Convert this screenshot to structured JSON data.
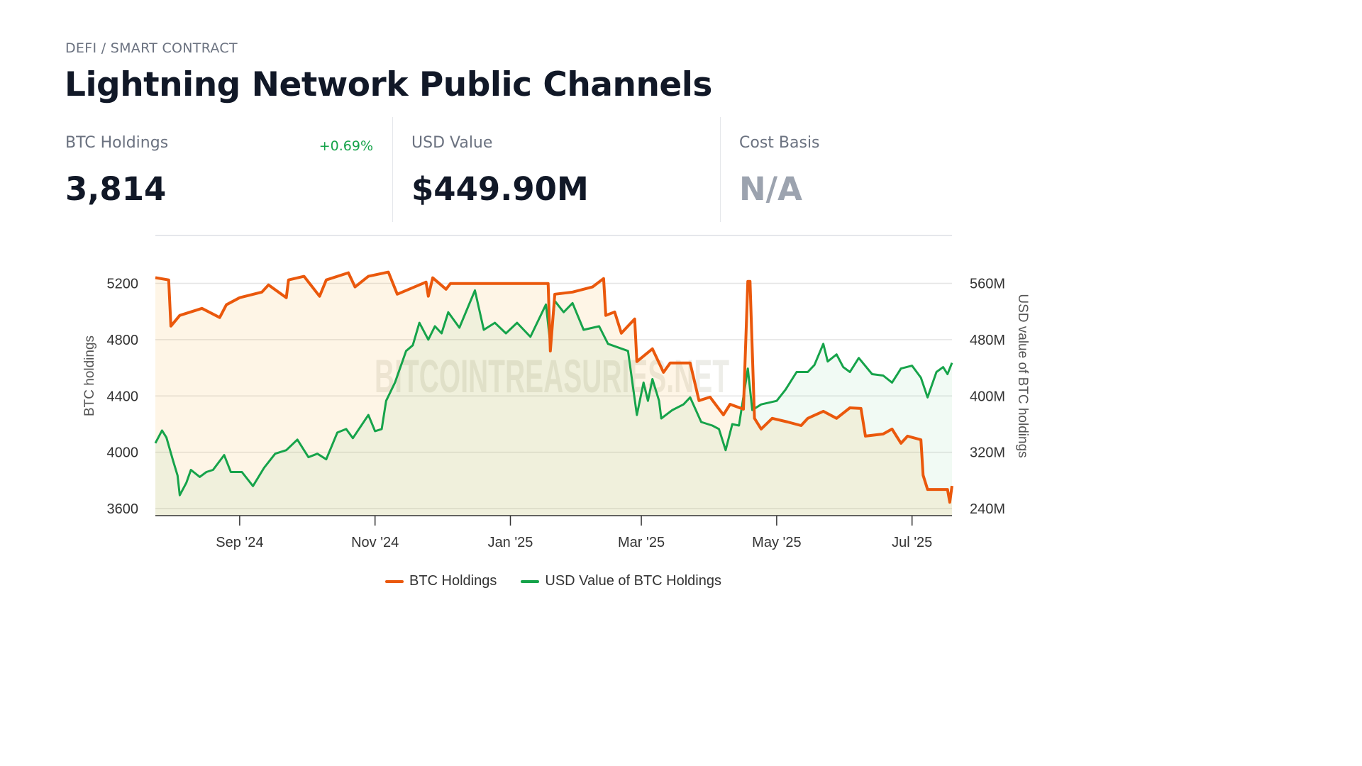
{
  "header": {
    "breadcrumb": "DEFI / SMART CONTRACT",
    "title": "Lightning Network Public Channels"
  },
  "stats": [
    {
      "label": "BTC Holdings",
      "value": "3,814",
      "change": "+0.69%"
    },
    {
      "label": "USD Value",
      "value": "$449.90M"
    },
    {
      "label": "Cost Basis",
      "value": "N/A"
    }
  ],
  "colors": {
    "btc": "#ea580c",
    "usd": "#16a34a",
    "change_positive": "#16a34a",
    "na_text": "#9ca3af"
  },
  "chart_data": {
    "type": "line",
    "watermark": "BITCOINTREASURIES.NET",
    "xlim": [
      "2024-07-25",
      "2025-07-19"
    ],
    "x_ticks": [
      {
        "date": "2024-09-01",
        "label": "Sep '24"
      },
      {
        "date": "2024-11-01",
        "label": "Nov '24"
      },
      {
        "date": "2025-01-01",
        "label": "Jan '25"
      },
      {
        "date": "2025-03-01",
        "label": "Mar '25"
      },
      {
        "date": "2025-05-01",
        "label": "May '25"
      },
      {
        "date": "2025-07-01",
        "label": "Jul '25"
      }
    ],
    "y_left": {
      "label": "BTC holdings",
      "lim": [
        3550,
        5540
      ],
      "ticks": [
        3600,
        4000,
        4400,
        4800,
        5200
      ],
      "tick_labels": [
        "3600",
        "4000",
        "4400",
        "4800",
        "5200"
      ]
    },
    "y_right": {
      "label": "USD value of BTC holdings",
      "lim": [
        230,
        628
      ],
      "ticks": [
        240,
        320,
        400,
        480,
        560
      ],
      "tick_labels": [
        "240M",
        "320M",
        "400M",
        "480M",
        "560M"
      ]
    },
    "grid": true,
    "legend_position": "bottom",
    "series": [
      {
        "name": "BTC Holdings",
        "axis": "left",
        "color": "#ea580c",
        "points": [
          [
            "2024-07-25",
            5240
          ],
          [
            "2024-07-31",
            5224
          ],
          [
            "2024-08-01",
            4896
          ],
          [
            "2024-08-05",
            4972
          ],
          [
            "2024-08-15",
            5022
          ],
          [
            "2024-08-23",
            4957
          ],
          [
            "2024-08-26",
            5048
          ],
          [
            "2024-09-01",
            5098
          ],
          [
            "2024-09-11",
            5138
          ],
          [
            "2024-09-14",
            5189
          ],
          [
            "2024-09-22",
            5098
          ],
          [
            "2024-09-23",
            5224
          ],
          [
            "2024-09-30",
            5250
          ],
          [
            "2024-10-07",
            5108
          ],
          [
            "2024-10-10",
            5224
          ],
          [
            "2024-10-20",
            5275
          ],
          [
            "2024-10-23",
            5174
          ],
          [
            "2024-10-29",
            5250
          ],
          [
            "2024-11-07",
            5280
          ],
          [
            "2024-11-11",
            5123
          ],
          [
            "2024-11-24",
            5209
          ],
          [
            "2024-11-25",
            5108
          ],
          [
            "2024-11-27",
            5239
          ],
          [
            "2024-12-03",
            5158
          ],
          [
            "2024-12-05",
            5199
          ],
          [
            "2025-01-18",
            5199
          ],
          [
            "2025-01-19",
            4720
          ],
          [
            "2025-01-21",
            5123
          ],
          [
            "2025-01-29",
            5138
          ],
          [
            "2025-02-07",
            5174
          ],
          [
            "2025-02-12",
            5234
          ],
          [
            "2025-02-13",
            4972
          ],
          [
            "2025-02-17",
            4997
          ],
          [
            "2025-02-20",
            4846
          ],
          [
            "2025-02-26",
            4947
          ],
          [
            "2025-02-27",
            4644
          ],
          [
            "2025-03-06",
            4735
          ],
          [
            "2025-03-11",
            4568
          ],
          [
            "2025-03-14",
            4634
          ],
          [
            "2025-03-23",
            4634
          ],
          [
            "2025-03-27",
            4367
          ],
          [
            "2025-04-01",
            4392
          ],
          [
            "2025-04-07",
            4266
          ],
          [
            "2025-04-10",
            4341
          ],
          [
            "2025-04-16",
            4306
          ],
          [
            "2025-04-18",
            5214
          ],
          [
            "2025-04-19",
            5214
          ],
          [
            "2025-04-21",
            4241
          ],
          [
            "2025-04-24",
            4165
          ],
          [
            "2025-04-29",
            4241
          ],
          [
            "2025-05-06",
            4215
          ],
          [
            "2025-05-12",
            4190
          ],
          [
            "2025-05-15",
            4241
          ],
          [
            "2025-05-22",
            4291
          ],
          [
            "2025-05-28",
            4241
          ],
          [
            "2025-06-03",
            4316
          ],
          [
            "2025-06-08",
            4311
          ],
          [
            "2025-06-10",
            4115
          ],
          [
            "2025-06-18",
            4130
          ],
          [
            "2025-06-22",
            4165
          ],
          [
            "2025-06-26",
            4064
          ],
          [
            "2025-06-29",
            4115
          ],
          [
            "2025-07-05",
            4089
          ],
          [
            "2025-07-06",
            3837
          ],
          [
            "2025-07-08",
            3736
          ],
          [
            "2025-07-17",
            3736
          ],
          [
            "2025-07-18",
            3645
          ],
          [
            "2025-07-19",
            3761
          ]
        ]
      },
      {
        "name": "USD Value of BTC Holdings",
        "axis": "right",
        "color": "#16a34a",
        "points": [
          [
            "2024-07-25",
            333
          ],
          [
            "2024-07-28",
            351
          ],
          [
            "2024-07-30",
            341
          ],
          [
            "2024-08-02",
            308
          ],
          [
            "2024-08-04",
            287
          ],
          [
            "2024-08-05",
            259
          ],
          [
            "2024-08-08",
            277
          ],
          [
            "2024-08-10",
            295
          ],
          [
            "2024-08-14",
            285
          ],
          [
            "2024-08-17",
            292
          ],
          [
            "2024-08-20",
            295
          ],
          [
            "2024-08-25",
            316
          ],
          [
            "2024-08-28",
            292
          ],
          [
            "2024-09-02",
            292
          ],
          [
            "2024-09-07",
            272
          ],
          [
            "2024-09-12",
            298
          ],
          [
            "2024-09-17",
            318
          ],
          [
            "2024-09-22",
            323
          ],
          [
            "2024-09-27",
            338
          ],
          [
            "2024-10-02",
            313
          ],
          [
            "2024-10-06",
            318
          ],
          [
            "2024-10-10",
            310
          ],
          [
            "2024-10-15",
            348
          ],
          [
            "2024-10-19",
            353
          ],
          [
            "2024-10-22",
            340
          ],
          [
            "2024-10-29",
            373
          ],
          [
            "2024-11-01",
            350
          ],
          [
            "2024-11-04",
            353
          ],
          [
            "2024-11-06",
            393
          ],
          [
            "2024-11-10",
            419
          ],
          [
            "2024-11-15",
            464
          ],
          [
            "2024-11-18",
            472
          ],
          [
            "2024-11-21",
            504
          ],
          [
            "2024-11-25",
            480
          ],
          [
            "2024-11-28",
            499
          ],
          [
            "2024-12-01",
            489
          ],
          [
            "2024-12-04",
            519
          ],
          [
            "2024-12-09",
            497
          ],
          [
            "2024-12-16",
            550
          ],
          [
            "2024-12-20",
            494
          ],
          [
            "2024-12-25",
            504
          ],
          [
            "2024-12-30",
            489
          ],
          [
            "2025-01-04",
            504
          ],
          [
            "2025-01-10",
            484
          ],
          [
            "2025-01-17",
            530
          ],
          [
            "2025-01-19",
            474
          ],
          [
            "2025-01-21",
            535
          ],
          [
            "2025-01-25",
            519
          ],
          [
            "2025-01-29",
            532
          ],
          [
            "2025-02-03",
            494
          ],
          [
            "2025-02-10",
            499
          ],
          [
            "2025-02-14",
            474
          ],
          [
            "2025-02-23",
            464
          ],
          [
            "2025-02-27",
            373
          ],
          [
            "2025-03-02",
            419
          ],
          [
            "2025-03-04",
            393
          ],
          [
            "2025-03-06",
            424
          ],
          [
            "2025-03-09",
            393
          ],
          [
            "2025-03-10",
            368
          ],
          [
            "2025-03-15",
            380
          ],
          [
            "2025-03-20",
            388
          ],
          [
            "2025-03-23",
            398
          ],
          [
            "2025-03-28",
            363
          ],
          [
            "2025-04-02",
            358
          ],
          [
            "2025-04-05",
            353
          ],
          [
            "2025-04-08",
            323
          ],
          [
            "2025-04-11",
            360
          ],
          [
            "2025-04-14",
            358
          ],
          [
            "2025-04-18",
            439
          ],
          [
            "2025-04-20",
            380
          ],
          [
            "2025-04-24",
            388
          ],
          [
            "2025-05-01",
            393
          ],
          [
            "2025-05-05",
            409
          ],
          [
            "2025-05-10",
            434
          ],
          [
            "2025-05-15",
            434
          ],
          [
            "2025-05-18",
            444
          ],
          [
            "2025-05-22",
            474
          ],
          [
            "2025-05-24",
            449
          ],
          [
            "2025-05-28",
            459
          ],
          [
            "2025-05-31",
            441
          ],
          [
            "2025-06-03",
            434
          ],
          [
            "2025-06-07",
            454
          ],
          [
            "2025-06-13",
            431
          ],
          [
            "2025-06-18",
            429
          ],
          [
            "2025-06-22",
            419
          ],
          [
            "2025-06-26",
            439
          ],
          [
            "2025-07-01",
            443
          ],
          [
            "2025-07-05",
            426
          ],
          [
            "2025-07-08",
            398
          ],
          [
            "2025-07-12",
            434
          ],
          [
            "2025-07-15",
            441
          ],
          [
            "2025-07-17",
            431
          ],
          [
            "2025-07-19",
            447
          ]
        ]
      }
    ]
  }
}
